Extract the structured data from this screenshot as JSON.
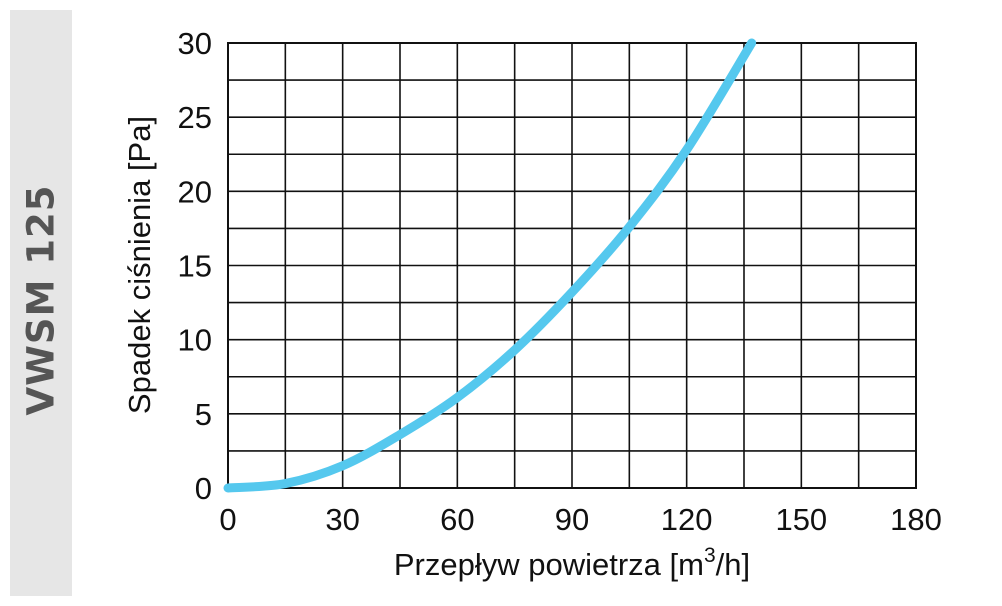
{
  "side_label": "VWSM 125",
  "chart_data": {
    "type": "line",
    "ylabel": "Spadek ciśnienia [Pa]",
    "xlabel": {
      "prefix": "Przepływ powietrza [m",
      "superscript": "3",
      "suffix": "/h]"
    },
    "xlim": [
      0,
      180
    ],
    "ylim": [
      0,
      30
    ],
    "x_ticks": [
      "0",
      "30",
      "60",
      "90",
      "120",
      "150",
      "180"
    ],
    "y_ticks": [
      "0",
      "5",
      "10",
      "15",
      "20",
      "25",
      "30"
    ],
    "grid": true,
    "series": [
      {
        "color": "#55c8ee",
        "x": [
          0,
          15,
          30,
          45,
          60,
          75,
          90,
          105,
          120,
          137
        ],
        "y": [
          0,
          0.3,
          1.5,
          3.6,
          6.1,
          9.3,
          13.2,
          17.6,
          22.8,
          30
        ]
      }
    ]
  }
}
